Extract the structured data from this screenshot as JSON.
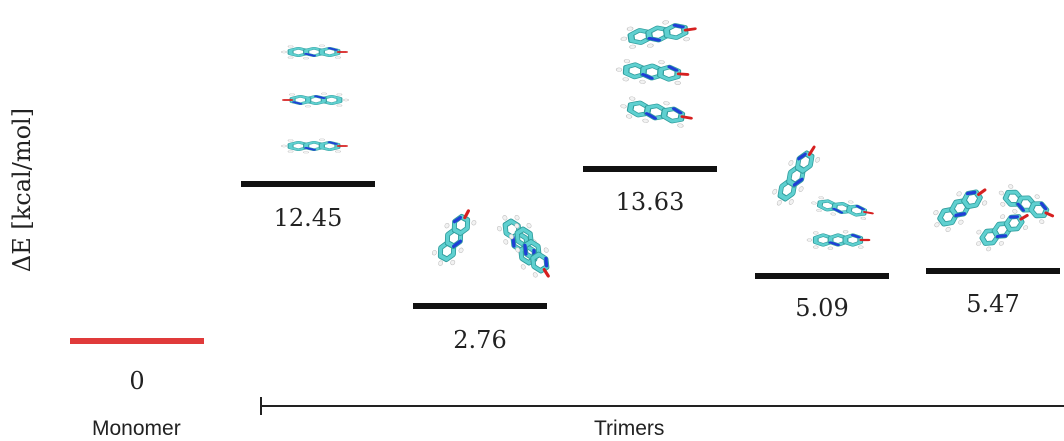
{
  "axis": {
    "ylabel": "ΔE [kcal/mol]"
  },
  "groups": {
    "monomer": "Monomer",
    "trimers": "Trimers"
  },
  "levels": [
    {
      "id": "monomer",
      "value": "0"
    },
    {
      "id": "trimer-1",
      "value": "12.45"
    },
    {
      "id": "trimer-2",
      "value": "2.76"
    },
    {
      "id": "trimer-3",
      "value": "13.63"
    },
    {
      "id": "trimer-4",
      "value": "5.09"
    },
    {
      "id": "trimer-5",
      "value": "5.47"
    }
  ],
  "colors": {
    "monomer_level": "#e03a3a",
    "trimer_level": "#111111",
    "carbon": "#5fd0d0",
    "carbon_edge": "#2f9c9c",
    "nitrogen": "#1f3fd6",
    "oxygen": "#d62020",
    "hydrogen": "#f2f2f2"
  },
  "icons": {
    "trimer-1": "stacked-trimer-molecule-icon",
    "trimer-2": "v-shaped-trimer-molecule-icon",
    "trimer-3": "offset-stacked-trimer-molecule-icon",
    "trimer-4": "t-shaped-trimer-molecule-icon",
    "trimer-5": "planar-trimer-molecule-icon"
  }
}
